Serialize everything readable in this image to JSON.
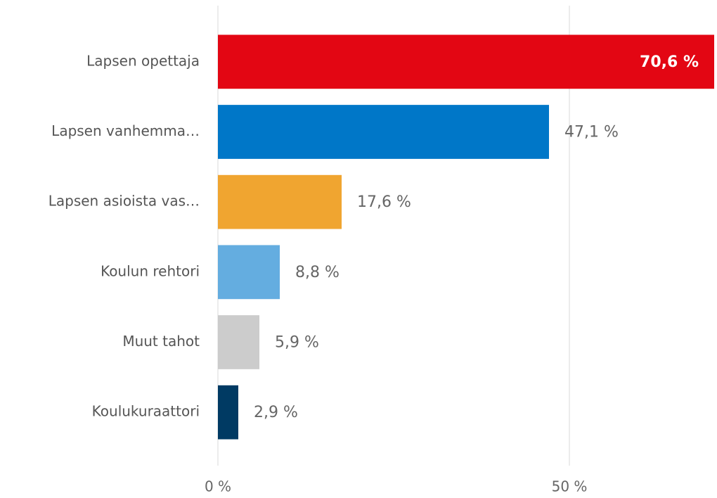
{
  "chart_data": {
    "type": "bar",
    "orientation": "horizontal",
    "categories": [
      "Lapsen opettaja",
      "Lapsen vanhemma…",
      "Lapsen asioista vas…",
      "Koulun rehtori",
      "Muut tahot",
      "Koulukuraattori"
    ],
    "values": [
      70.6,
      47.1,
      17.6,
      8.8,
      5.9,
      2.9
    ],
    "value_labels": [
      "70,6 %",
      "47,1 %",
      "17,6 %",
      "8,8 %",
      "5,9 %",
      "2,9 %"
    ],
    "colors": [
      "#e30613",
      "#0077c8",
      "#f0a530",
      "#64ade0",
      "#cccccc",
      "#003a63"
    ],
    "xlim": [
      0,
      71
    ],
    "xticks": [
      {
        "value": 0,
        "label": "0 %"
      },
      {
        "value": 50,
        "label": "50 %"
      }
    ],
    "grid": true
  }
}
